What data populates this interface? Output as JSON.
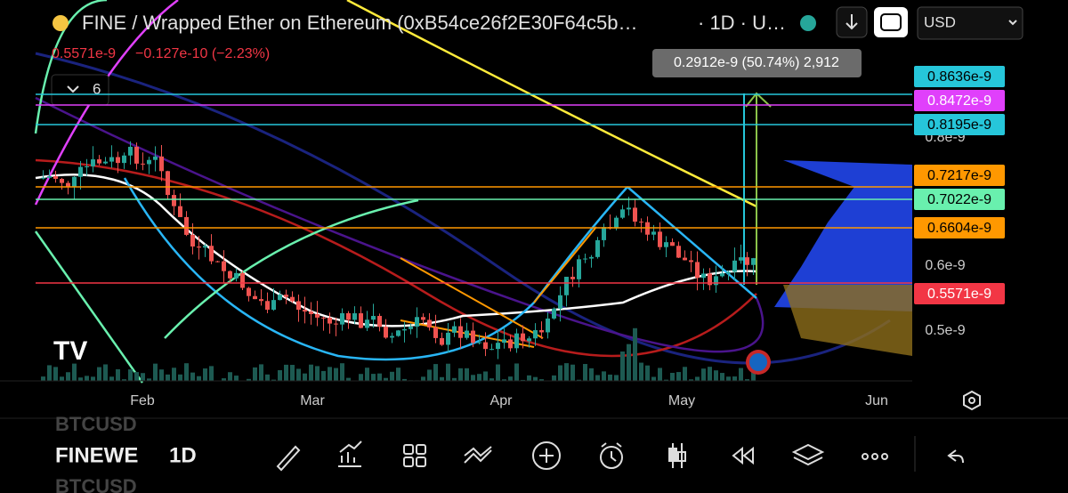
{
  "header": {
    "title": "FINE / Wrapped Ether on Ethereum (0xB54ce26f2E30F64c5b…",
    "interval": "· 1D · U…",
    "currency": "USD"
  },
  "legend": {
    "price": "0.5571e-9",
    "change": "−0.127e-10 (−2.23%)",
    "indicator_count": "6"
  },
  "measure_tooltip": "0.2912e-9 (50.74%) 2,912",
  "price_labels": [
    {
      "label": "0.8636e-9",
      "color": "#26c6da"
    },
    {
      "label": "0.8472e-9",
      "color": "#e040fb"
    },
    {
      "label": "0.8195e-9",
      "color": "#26c6da"
    },
    {
      "label": "0.7217e-9",
      "color": "#ff9800"
    },
    {
      "label": "0.7022e-9",
      "color": "#69f0ae"
    },
    {
      "label": "0.6604e-9",
      "color": "#ff9800"
    },
    {
      "label": "0.5571e-9",
      "color": "#f23645"
    }
  ],
  "price_axis": [
    "0.8e-9",
    "0.6e-9",
    "0.5e-9"
  ],
  "time_axis": [
    "Feb",
    "Mar",
    "Apr",
    "May",
    "Jun"
  ],
  "bottom_bar": {
    "symbol_above": "BTCUSD",
    "symbol": "FINEWE",
    "interval": "1D",
    "symbol_below": "BTCUSD"
  }
}
